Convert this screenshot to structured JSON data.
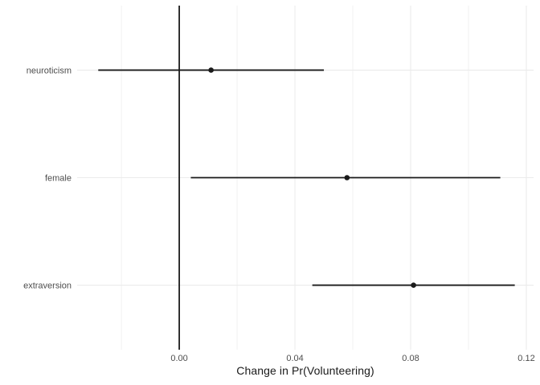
{
  "chart_data": {
    "type": "scatter",
    "chart_kind": "coefficient-dot-whisker-plot",
    "title": "",
    "xlabel": "Change in Pr(Volunteering)",
    "ylabel": "",
    "categories": [
      "neuroticism",
      "female",
      "extraversion"
    ],
    "points": [
      {
        "label": "neuroticism",
        "estimate": 0.011,
        "ci_low": -0.028,
        "ci_high": 0.05
      },
      {
        "label": "female",
        "estimate": 0.058,
        "ci_low": 0.004,
        "ci_high": 0.111
      },
      {
        "label": "extraversion",
        "estimate": 0.081,
        "ci_low": 0.046,
        "ci_high": 0.116
      }
    ],
    "x_ticks": [
      {
        "value": 0.0,
        "label": "0.00"
      },
      {
        "value": 0.04,
        "label": "0.04"
      },
      {
        "value": 0.08,
        "label": "0.08"
      },
      {
        "value": 0.12,
        "label": "0.12"
      }
    ],
    "x_minor_gridlines": [
      -0.02,
      0.02,
      0.06,
      0.1
    ],
    "xlim": [
      -0.0353,
      0.1225
    ],
    "reference_line_x": 0,
    "grid": true,
    "legend": false
  },
  "colors": {
    "background": "#ffffff",
    "grid": "#ebebeb",
    "ci_line": "#1a1a1a",
    "point": "#1a1a1a",
    "zero_line": "#000000",
    "axis_text": "#4d4d4d",
    "axis_title": "#1a1a1a"
  }
}
